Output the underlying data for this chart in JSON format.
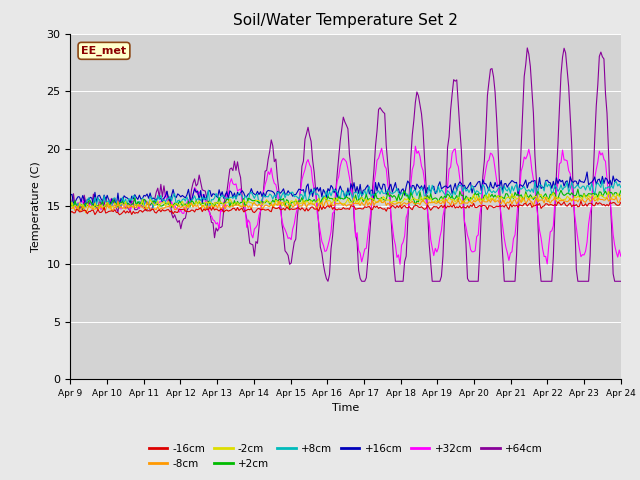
{
  "title": "Soil/Water Temperature Set 2",
  "xlabel": "Time",
  "ylabel": "Temperature (C)",
  "ylim": [
    0,
    30
  ],
  "yticks": [
    0,
    5,
    10,
    15,
    20,
    25,
    30
  ],
  "x_tick_labels": [
    "Apr 9",
    "Apr 10",
    "Apr 11",
    "Apr 12",
    "Apr 13",
    "Apr 14",
    "Apr 15",
    "Apr 16",
    "Apr 17",
    "Apr 18",
    "Apr 19",
    "Apr 20",
    "Apr 21",
    "Apr 22",
    "Apr 23",
    "Apr 24"
  ],
  "fig_bg_color": "#e8e8e8",
  "plot_bg_color": "#d3d3d3",
  "annotation_text": "EE_met",
  "annotation_box_facecolor": "#ffffcc",
  "annotation_box_edgecolor": "#8B4513",
  "series_colors": {
    "-16cm": "#dd0000",
    "-8cm": "#ff9900",
    "-2cm": "#dddd00",
    "+2cm": "#00bb00",
    "+8cm": "#00bbbb",
    "+16cm": "#0000bb",
    "+32cm": "#ff00ff",
    "+64cm": "#880099"
  },
  "legend_row1": [
    "-16cm",
    "-8cm",
    "-2cm",
    "+2cm",
    "+8cm",
    "+16cm"
  ],
  "legend_row2": [
    "+32cm",
    "+64cm"
  ]
}
